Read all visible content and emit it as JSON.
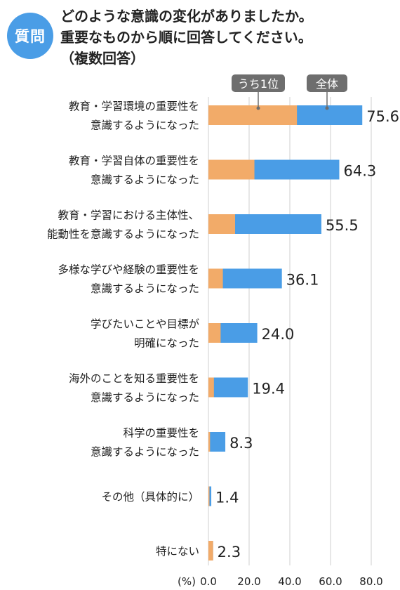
{
  "badge": "質問",
  "question": [
    "どのような意識の変化がありましたか。",
    "重要なものから順に回答してください。",
    "（複数回答）"
  ],
  "colors": {
    "accent": "#4a9de6",
    "top1": "#f2ab69",
    "callout": "#6e6e6e",
    "grid": "#cfcfcf"
  },
  "chart_data": {
    "type": "bar",
    "orientation": "horizontal",
    "stacked": "overlay",
    "categories": [
      [
        "教育・学習環境の重要性を",
        "意識するようになった"
      ],
      [
        "教育・学習自体の重要性を",
        "意識するようになった"
      ],
      [
        "教育・学習における主体性、",
        "能動性を意識するようになった"
      ],
      [
        "多様な学びや経験の重要性を",
        "意識するようになった"
      ],
      [
        "学びたいことや目標が",
        "明確になった"
      ],
      [
        "海外のことを知る重要性を",
        "意識するようになった"
      ],
      [
        "科学の重要性を",
        "意識するようになった"
      ],
      [
        "その他（具体的に）"
      ],
      [
        "特にない"
      ]
    ],
    "series": [
      {
        "name": "全体",
        "values": [
          75.6,
          64.3,
          55.5,
          36.1,
          24.0,
          19.4,
          8.3,
          1.4,
          2.3
        ],
        "color": "#4a9de6"
      },
      {
        "name": "うち1位",
        "values": [
          43.5,
          22.6,
          13.1,
          7.1,
          6.0,
          2.7,
          0.8,
          0.5,
          2.3
        ],
        "color": "#f2ab69"
      }
    ],
    "value_labels": [
      "75.6",
      "64.3",
      "55.5",
      "36.1",
      "24.0",
      "19.4",
      "8.3",
      "1.4",
      "2.3"
    ],
    "xlim": [
      0,
      80
    ],
    "ticks": [
      "0.0",
      "20.0",
      "40.0",
      "60.0",
      "80.0"
    ],
    "unit": "(%)",
    "grid": true,
    "legend_placement": "callouts above first bar"
  }
}
